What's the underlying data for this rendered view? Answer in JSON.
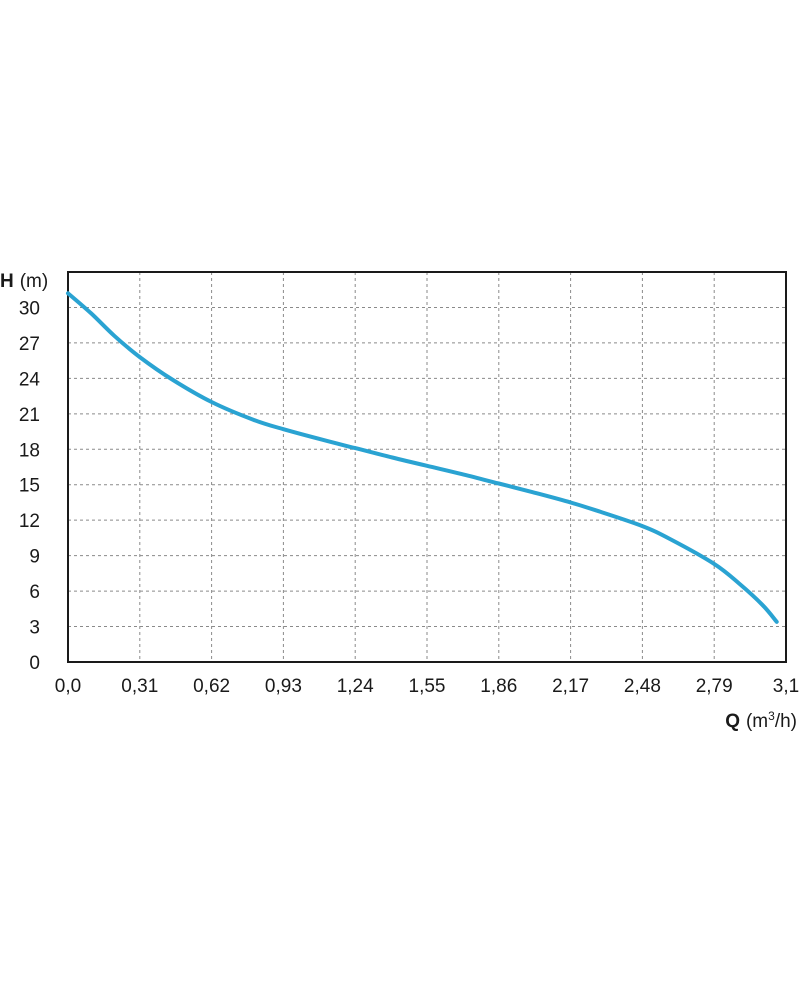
{
  "chart_data": {
    "type": "line",
    "ylabel": {
      "symbol": "H",
      "unit": "(m)"
    },
    "xlabel": {
      "symbol": "Q",
      "unit_prefix": "(m",
      "unit_sup": "3",
      "unit_suffix": "/h)"
    },
    "x_ticks": [
      "0,0",
      "0,31",
      "0,62",
      "0,93",
      "1,24",
      "1,55",
      "1,86",
      "2,17",
      "2,48",
      "2,79",
      "3,1"
    ],
    "y_ticks": [
      "0",
      "3",
      "6",
      "9",
      "12",
      "15",
      "18",
      "21",
      "24",
      "27",
      "30"
    ],
    "xlim": [
      0,
      3.1
    ],
    "ylim": [
      0,
      33
    ],
    "grid": true,
    "series": [
      {
        "color": "#2aa3d2",
        "x": [
          0.0,
          0.1,
          0.2,
          0.31,
          0.45,
          0.62,
          0.8,
          0.93,
          1.1,
          1.24,
          1.4,
          1.55,
          1.7,
          1.86,
          2.0,
          2.17,
          2.3,
          2.48,
          2.6,
          2.79,
          2.9,
          3.0,
          3.06
        ],
        "y": [
          31.2,
          29.5,
          27.6,
          25.8,
          23.9,
          22.0,
          20.5,
          19.7,
          18.8,
          18.1,
          17.3,
          16.6,
          15.9,
          15.1,
          14.4,
          13.5,
          12.7,
          11.5,
          10.4,
          8.3,
          6.6,
          4.8,
          3.4
        ]
      }
    ]
  }
}
